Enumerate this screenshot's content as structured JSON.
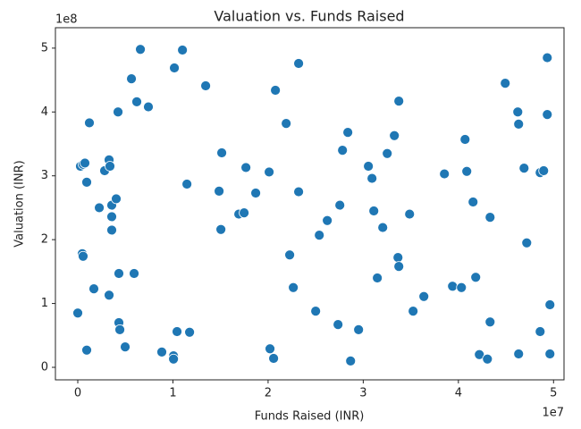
{
  "chart_data": {
    "type": "scatter",
    "title": "Valuation vs. Funds Raised",
    "x_label": "Funds Raised (INR)",
    "y_label": "Valuation (INR)",
    "x_offset_text": "1e7",
    "y_offset_text": "1e8",
    "color": "#1f77b4",
    "x": [
      0,
      280000.0,
      560000.0,
      750000.0,
      470000.0,
      560000.0,
      940000.0,
      940000.0,
      1220000.0,
      1690000.0,
      2260000.0,
      2820000.0,
      3290000.0,
      3380000.0,
      3290000.0,
      3570000.0,
      3570000.0,
      3570000.0,
      4040000.0,
      4320000.0,
      4320000.0,
      4420000.0,
      4980000.0,
      4230000.0,
      5640000.0,
      5920000.0,
      6200000.0,
      6580000.0,
      7420000.0,
      8830000.0,
      10060000.0,
      10060000.0,
      10150000.0,
      10430000.0,
      11000000.0,
      11470000.0,
      11750000.0,
      13440000.0,
      14850000.0,
      15040000.0,
      15130000.0,
      16920000.0,
      17480000.0,
      17670000.0,
      18700000.0,
      20110000.0,
      20200000.0,
      20580000.0,
      20770000.0,
      21900000.0,
      22270000.0,
      22650000.0,
      23210000.0,
      23210000.0,
      25000000.0,
      25380000.0,
      26220000.0,
      27350000.0,
      27540000.0,
      27820000.0,
      28380000.0,
      28670000.0,
      29510000.0,
      30540000.0,
      30920000.0,
      31110000.0,
      31480000.0,
      32050000.0,
      32520000.0,
      33270000.0,
      33650000.0,
      33740000.0,
      33740000.0,
      34870000.0,
      35240000.0,
      36370000.0,
      38530000.0,
      39380000.0,
      40320000.0,
      40700000.0,
      40880000.0,
      41540000.0,
      41820000.0,
      42200000.0,
      43050000.0,
      43330000.0,
      43330000.0,
      44920000.0,
      46240000.0,
      46330000.0,
      46330000.0,
      46900000.0,
      47180000.0,
      48590000.0,
      48590000.0,
      48960000.0,
      49340000.0,
      49340000.0,
      49620000.0,
      49620000.0
    ],
    "values": [
      85000000.0,
      315000000.0,
      318000000.0,
      320000000.0,
      178000000.0,
      174000000.0,
      27000000.0,
      290000000.0,
      383000000.0,
      123000000.0,
      250000000.0,
      308000000.0,
      325000000.0,
      315000000.0,
      113000000.0,
      254000000.0,
      236000000.0,
      215000000.0,
      264000000.0,
      147000000.0,
      70000000.0,
      59000000.0,
      32000000.0,
      400000000.0,
      452000000.0,
      147000000.0,
      416000000.0,
      498000000.0,
      408000000.0,
      24000000.0,
      18000000.0,
      13000000.0,
      469000000.0,
      56000000.0,
      497000000.0,
      287000000.0,
      55000000.0,
      441000000.0,
      276000000.0,
      216000000.0,
      336000000.0,
      240000000.0,
      242000000.0,
      313000000.0,
      273000000.0,
      306000000.0,
      29000000.0,
      14000000.0,
      434000000.0,
      382000000.0,
      176000000.0,
      125000000.0,
      476000000.0,
      275000000.0,
      88000000.0,
      207000000.0,
      230000000.0,
      67000000.0,
      254000000.0,
      340000000.0,
      368000000.0,
      10000000.0,
      59000000.0,
      315000000.0,
      296000000.0,
      245000000.0,
      140000000.0,
      219000000.0,
      335000000.0,
      363000000.0,
      172000000.0,
      158000000.0,
      417000000.0,
      240000000.0,
      88000000.0,
      111000000.0,
      303000000.0,
      127000000.0,
      125000000.0,
      357000000.0,
      307000000.0,
      259000000.0,
      141000000.0,
      20000000.0,
      13000000.0,
      235000000.0,
      71000000.0,
      445000000.0,
      400000000.0,
      381000000.0,
      21000000.0,
      312000000.0,
      195000000.0,
      56000000.0,
      305000000.0,
      308000000.0,
      485000000.0,
      396000000.0,
      98000000.0,
      21000000.0
    ],
    "xlim": [
      -2350000.0,
      51100000.0
    ],
    "ylim": [
      -19600000.0,
      532000000.0
    ],
    "xticks": [
      0,
      {
        "value": 10000000.0,
        "label": "1"
      },
      {
        "value": 20000000.0,
        "label": "2"
      },
      {
        "value": 30000000.0,
        "label": "3"
      },
      {
        "value": 40000000.0,
        "label": "4"
      },
      {
        "value": 50000000.0,
        "label": "5"
      }
    ],
    "yticks": [
      0,
      {
        "value": 100000000.0,
        "label": "1"
      },
      {
        "value": 200000000.0,
        "label": "2"
      },
      {
        "value": 300000000.0,
        "label": "3"
      },
      {
        "value": 400000000.0,
        "label": "4"
      },
      {
        "value": 500000000.0,
        "label": "5"
      }
    ],
    "grid": false
  }
}
